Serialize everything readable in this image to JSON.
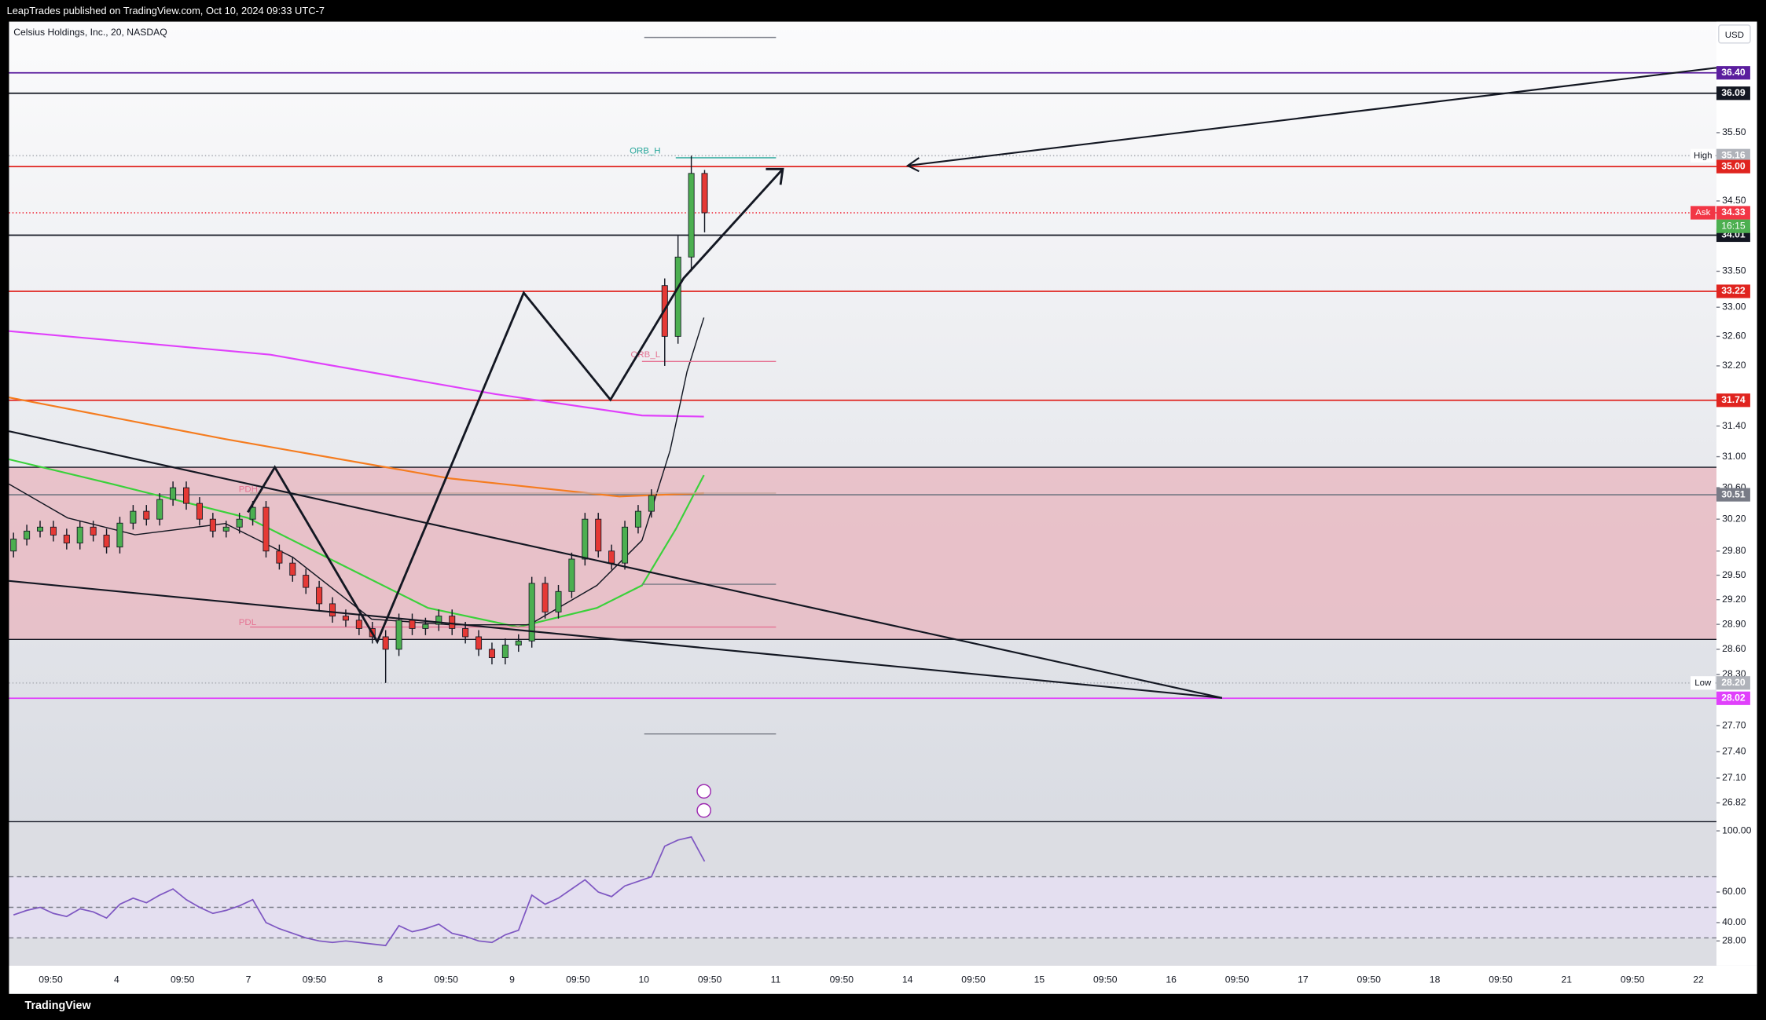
{
  "header": {
    "publisher": "LeapTrades published on TradingView.com, Oct 10, 2024 09:33 UTC-7",
    "footer": "TradingView"
  },
  "chart_data": {
    "type": "candlestick",
    "title": "Celsius Holdings, Inc., 20, NASDAQ",
    "currency": "USD",
    "log_scale": true,
    "colors": {
      "up": "#4caf50",
      "down": "#e53935"
    },
    "ylim": [
      26.61,
      37.17
    ],
    "yticks": [
      26.82,
      {
        "value": 27.1,
        "label": "27.10"
      },
      {
        "value": 27.4,
        "label": "27.40"
      },
      {
        "value": 27.7,
        "label": "27.70"
      },
      {
        "value": 28.3,
        "label": "28.30"
      },
      {
        "value": 28.6,
        "label": "28.60"
      },
      {
        "value": 28.9,
        "label": "28.90"
      },
      {
        "value": 29.2,
        "label": "29.20"
      },
      {
        "value": 29.5,
        "label": "29.50"
      },
      {
        "value": 29.8,
        "label": "29.80"
      },
      {
        "value": 30.2,
        "label": "30.20"
      },
      {
        "value": 30.6,
        "label": "30.60"
      },
      {
        "value": 31,
        "label": "31.00"
      },
      {
        "value": 31.4,
        "label": "31.40"
      },
      {
        "value": 32.2,
        "label": "32.20"
      },
      {
        "value": 32.6,
        "label": "32.60"
      },
      {
        "value": 33,
        "label": "33.00"
      },
      {
        "value": 33.5,
        "label": "33.50"
      },
      {
        "value": 34.5,
        "label": "34.50"
      },
      {
        "value": 35.5,
        "label": "35.50"
      }
    ],
    "categories": [
      "09:50",
      "4",
      "09:50",
      "7",
      "09:50",
      "8",
      "09:50",
      "9",
      "09:50",
      "10",
      "09:50",
      "11",
      "09:50",
      "14",
      "09:50",
      "15",
      "09:50",
      "16",
      "09:50",
      "17",
      "09:50",
      "18",
      "09:50",
      "21",
      "09:50",
      "22"
    ],
    "open": [
      29.8,
      29.95,
      30.05,
      30.1,
      30.0,
      29.9,
      30.1,
      30.0,
      29.85,
      30.15,
      30.3,
      30.2,
      30.45,
      30.6,
      30.4,
      30.2,
      30.05,
      30.1,
      30.2,
      30.35,
      29.8,
      29.65,
      29.5,
      29.35,
      29.15,
      29.0,
      28.95,
      28.85,
      28.75,
      28.6,
      28.95,
      28.85,
      28.9,
      29.0,
      28.85,
      28.75,
      28.6,
      28.5,
      28.65,
      28.7,
      29.4,
      29.05,
      29.3,
      29.7,
      30.2,
      29.8,
      29.65,
      30.1,
      30.3,
      33.3,
      32.6,
      33.7,
      34.9
    ],
    "high": [
      30.03,
      30.13,
      30.18,
      30.18,
      30.08,
      30.18,
      30.18,
      30.08,
      30.23,
      30.38,
      30.38,
      30.53,
      30.68,
      30.68,
      30.48,
      30.28,
      30.18,
      30.28,
      30.43,
      30.43,
      29.88,
      29.73,
      29.58,
      29.43,
      29.23,
      29.08,
      29.03,
      28.93,
      28.83,
      29.03,
      29.03,
      28.98,
      29.08,
      29.08,
      28.93,
      28.83,
      28.68,
      28.73,
      28.78,
      29.48,
      29.48,
      29.38,
      29.78,
      30.28,
      30.28,
      29.88,
      30.18,
      30.38,
      30.58,
      33.4,
      34.0,
      35.16,
      34.95
    ],
    "low": [
      29.72,
      29.87,
      29.97,
      29.92,
      29.82,
      29.82,
      29.92,
      29.77,
      29.77,
      30.07,
      30.12,
      30.12,
      30.37,
      30.32,
      30.12,
      29.97,
      29.97,
      30.02,
      30.12,
      29.72,
      29.57,
      29.42,
      29.27,
      29.07,
      28.92,
      28.87,
      28.77,
      28.67,
      28.2,
      28.52,
      28.77,
      28.77,
      28.82,
      28.77,
      28.67,
      28.52,
      28.42,
      28.42,
      28.57,
      28.62,
      28.97,
      28.97,
      29.22,
      29.62,
      29.72,
      29.57,
      29.57,
      30.02,
      30.22,
      32.2,
      32.5,
      33.5,
      34.05
    ],
    "close": [
      29.95,
      30.05,
      30.1,
      30.0,
      29.9,
      30.1,
      30.0,
      29.85,
      30.15,
      30.3,
      30.2,
      30.45,
      30.6,
      30.4,
      30.2,
      30.05,
      30.1,
      30.2,
      30.35,
      29.8,
      29.65,
      29.5,
      29.35,
      29.15,
      29.0,
      28.95,
      28.85,
      28.75,
      28.6,
      28.95,
      28.85,
      28.9,
      29.0,
      28.85,
      28.75,
      28.6,
      28.5,
      28.65,
      28.7,
      29.4,
      29.05,
      29.3,
      29.7,
      30.2,
      29.8,
      29.65,
      30.1,
      30.3,
      30.5,
      32.6,
      33.7,
      34.9,
      34.33
    ],
    "levels": [
      {
        "value": 36.4,
        "label": "36.40",
        "color": "#5b1e9e"
      },
      {
        "value": 36.09,
        "label": "36.09",
        "color": "#131722"
      },
      {
        "value": 35.16,
        "label": "35.16",
        "color": "#b0b3ba",
        "tag": "High"
      },
      {
        "value": 35,
        "label": "35.00",
        "color": "#e0241f"
      },
      {
        "value": 34.33,
        "label": "34.33",
        "color": "#f23645",
        "tag": "Ask"
      },
      {
        "value": 34.01,
        "label": "34.01",
        "color": "#131722"
      },
      {
        "value": 33.22,
        "label": "33.22",
        "color": "#e0241f"
      },
      {
        "value": 31.74,
        "label": "31.74",
        "color": "#e0241f"
      },
      {
        "value": 30.51,
        "label": "30.51",
        "color": "#787b86"
      },
      {
        "value": 28.2,
        "label": "28.20",
        "color": "#b0b3ba",
        "tag": "Low"
      },
      {
        "value": 28.02,
        "label": "28.02",
        "color": "#e040fb"
      }
    ],
    "countdown": "16:15",
    "annotations": [
      "ORB_H",
      "ORB_L",
      "PDH",
      "PDL"
    ],
    "rsi": {
      "ylim": [
        14,
        106
      ],
      "yticks": [
        {
          "value": 28,
          "label": "28.00"
        },
        {
          "value": 40,
          "label": "40.00"
        },
        {
          "value": 60,
          "label": "60.00"
        },
        {
          "value": 100,
          "label": "100.00"
        }
      ],
      "bands": [
        70,
        50,
        30
      ],
      "color": "#7e57c2",
      "values": [
        45,
        48,
        50,
        46,
        44,
        49,
        47,
        43,
        52,
        56,
        53,
        58,
        62,
        55,
        50,
        46,
        48,
        51,
        55,
        40,
        36,
        33,
        30,
        28,
        27,
        28,
        27,
        26,
        25,
        38,
        34,
        36,
        39,
        33,
        31,
        28,
        27,
        32,
        35,
        58,
        52,
        56,
        62,
        68,
        60,
        57,
        64,
        67,
        70,
        90,
        94,
        96,
        80
      ]
    }
  }
}
